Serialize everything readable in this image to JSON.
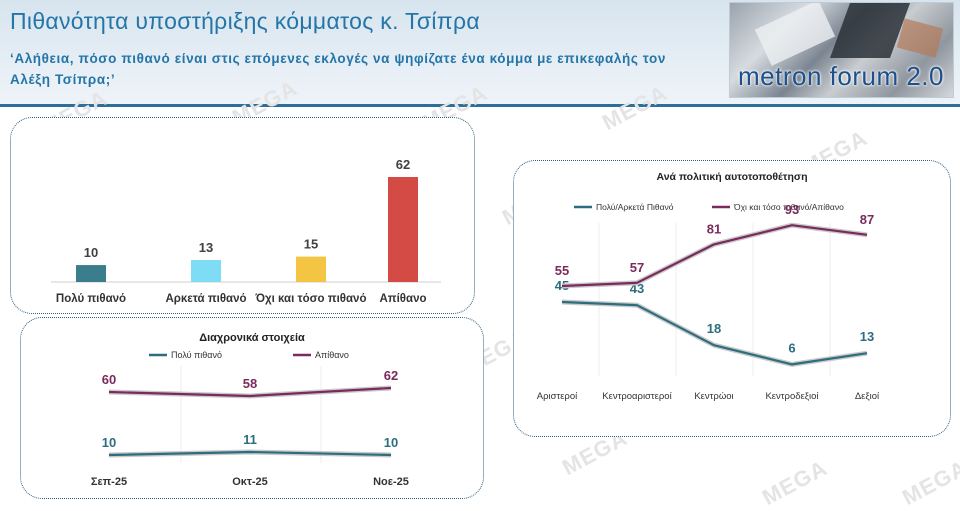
{
  "header": {
    "title": "Πιθανότητα υποστήριξης κόμματος κ. Τσίπρα",
    "subtitle": "‘Αλήθεια, πόσο πιθανό είναι στις επόμενες εκλογές να ψηφίζατε ένα κόμμα με επικεφαλής τον Αλέξη Τσίπρα;’",
    "logo_text": "metron forum 2.0"
  },
  "watermark": "MEGA",
  "colors": {
    "teal": "#2c6e7f",
    "maroon": "#7a2a5c",
    "bar_colors": [
      "#3a7d8c",
      "#7fdcf5",
      "#f4c542",
      "#d44a45"
    ],
    "header_text": "#2475a8"
  },
  "chart_data": [
    {
      "type": "bar",
      "categories": [
        "Πολύ πιθανό",
        "Αρκετά πιθανό",
        "Όχι και τόσο πιθανό",
        "Απίθανο"
      ],
      "values": [
        10,
        13,
        15,
        62
      ],
      "labels": [
        "10",
        "13",
        "15",
        "62"
      ]
    },
    {
      "type": "line",
      "title": "Διαχρονικά στοιχεία",
      "categories": [
        "Σεπ-25",
        "Οκτ-25",
        "Νοε-25"
      ],
      "series": [
        {
          "name": "Πολύ πιθανό",
          "values": [
            10,
            11,
            10
          ],
          "labels": [
            "10",
            "11",
            "10"
          ]
        },
        {
          "name": "Απίθανο",
          "values": [
            60,
            58,
            62
          ],
          "labels": [
            "60",
            "58",
            "62"
          ]
        }
      ],
      "legend": "top"
    },
    {
      "type": "line",
      "title": "Ανά πολιτική αυτοτοποθέτηση",
      "categories": [
        "Αριστεροί",
        "Κεντροαριστεροί",
        "Κεντρώοι",
        "Κεντροδεξιοί",
        "Δεξιοί"
      ],
      "series": [
        {
          "name": "Πολύ/Αρκετά Πιθανό",
          "values": [
            45,
            43,
            18,
            6,
            13
          ],
          "labels": [
            "45",
            "43",
            "18",
            "6",
            "13"
          ]
        },
        {
          "name": "Όχι και τόσο πιθανό/Απίθανο",
          "values": [
            55,
            57,
            81,
            93,
            87
          ],
          "labels": [
            "55",
            "57",
            "81",
            "93",
            "87"
          ]
        }
      ],
      "legend": "top"
    }
  ]
}
